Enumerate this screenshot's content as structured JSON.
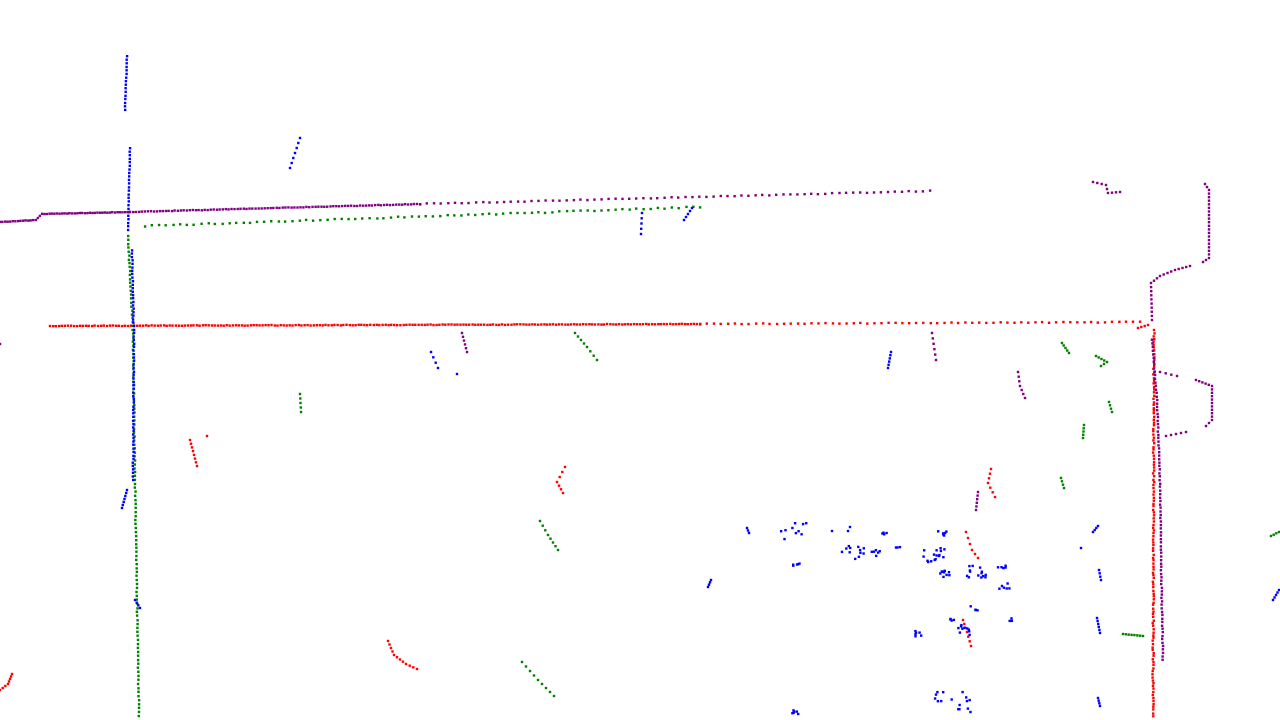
{
  "background": "#ffffff",
  "series": [
    {
      "id": "red",
      "color": "#ff0000"
    },
    {
      "id": "green",
      "color": "#008000"
    },
    {
      "id": "blue",
      "color": "#0000ff"
    },
    {
      "id": "purple",
      "color": "#800080"
    }
  ]
}
